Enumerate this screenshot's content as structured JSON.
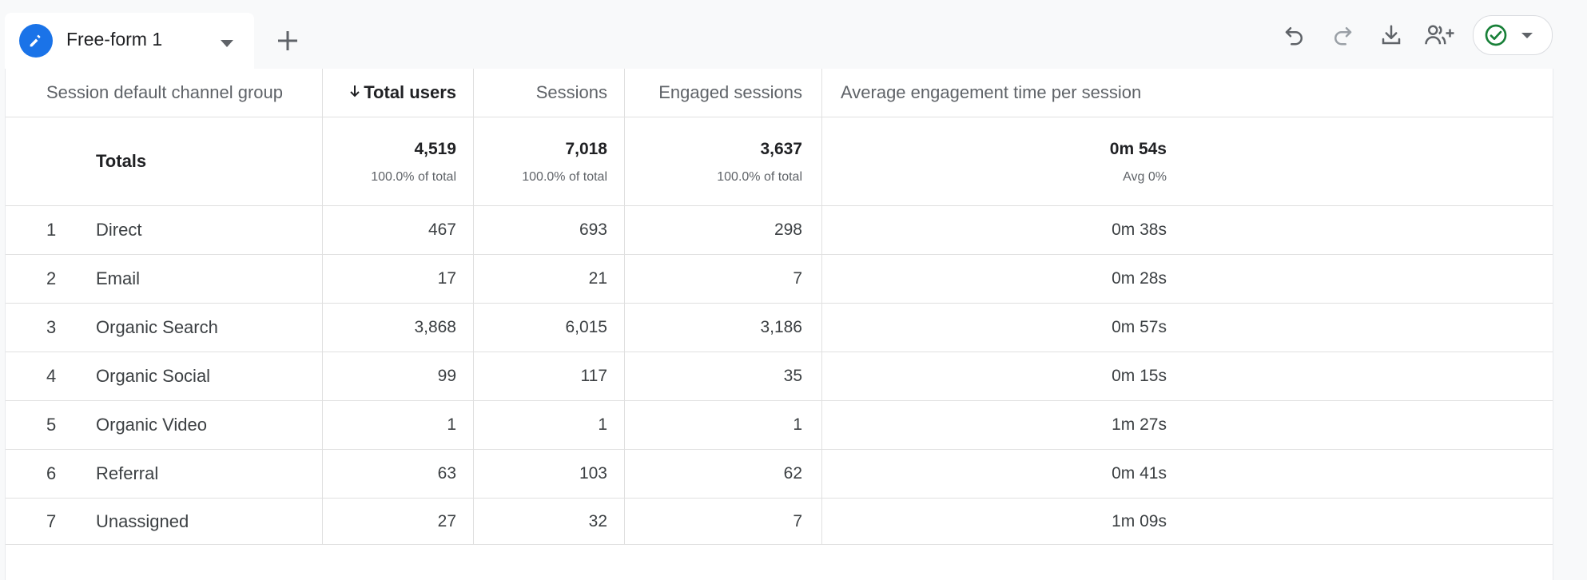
{
  "tab": {
    "label": "Free-form 1",
    "icon": "pencil-icon"
  },
  "toolbar": {
    "icons": [
      "undo-icon",
      "redo-icon",
      "download-icon",
      "share-icon",
      "check-circle-icon",
      "caret-down-icon"
    ]
  },
  "table": {
    "headers": {
      "channel": "Session default channel group",
      "total_users": "Total users",
      "sessions": "Sessions",
      "engaged_sessions": "Engaged sessions",
      "avg_engagement": "Average engagement time per session"
    },
    "totals": {
      "label": "Totals",
      "total_users": "4,519",
      "total_users_sub": "100.0% of total",
      "sessions": "7,018",
      "sessions_sub": "100.0% of total",
      "engaged_sessions": "3,637",
      "engaged_sessions_sub": "100.0% of total",
      "avg_engagement": "0m 54s",
      "avg_engagement_sub": "Avg 0%"
    },
    "rows": [
      {
        "index": "1",
        "channel": "Direct",
        "total_users": "467",
        "sessions": "693",
        "engaged_sessions": "298",
        "avg_engagement": "0m 38s"
      },
      {
        "index": "2",
        "channel": "Email",
        "total_users": "17",
        "sessions": "21",
        "engaged_sessions": "7",
        "avg_engagement": "0m 28s"
      },
      {
        "index": "3",
        "channel": "Organic Search",
        "total_users": "3,868",
        "sessions": "6,015",
        "engaged_sessions": "3,186",
        "avg_engagement": "0m 57s"
      },
      {
        "index": "4",
        "channel": "Organic Social",
        "total_users": "99",
        "sessions": "117",
        "engaged_sessions": "35",
        "avg_engagement": "0m 15s"
      },
      {
        "index": "5",
        "channel": "Organic Video",
        "total_users": "1",
        "sessions": "1",
        "engaged_sessions": "1",
        "avg_engagement": "1m 27s"
      },
      {
        "index": "6",
        "channel": "Referral",
        "total_users": "63",
        "sessions": "103",
        "engaged_sessions": "62",
        "avg_engagement": "0m 41s"
      },
      {
        "index": "7",
        "channel": "Unassigned",
        "total_users": "27",
        "sessions": "32",
        "engaged_sessions": "7",
        "avg_engagement": "1m 09s"
      }
    ]
  },
  "colors": {
    "accent": "#1a73e8",
    "success": "#188038",
    "text": "#3c4043",
    "border": "#e0e0e0"
  }
}
